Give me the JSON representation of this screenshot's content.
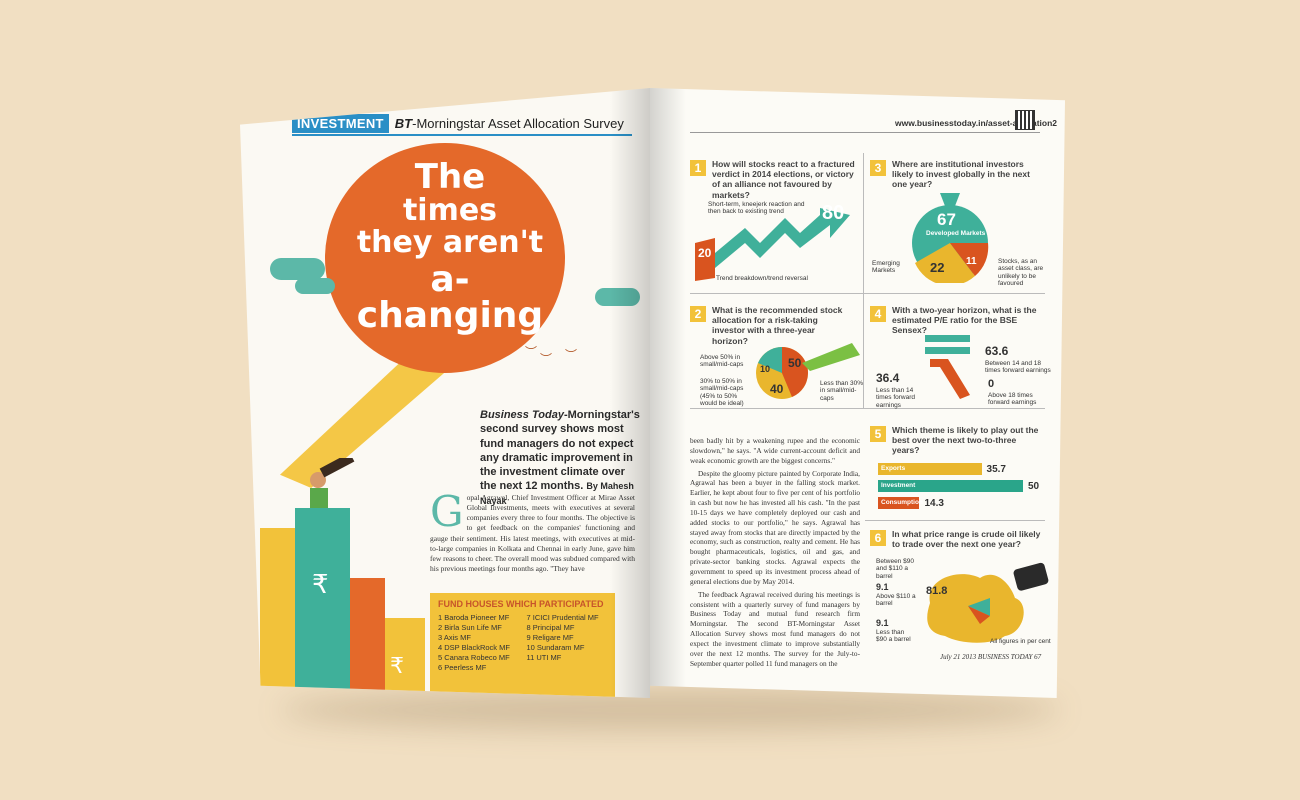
{
  "left_page": {
    "section_tag": "INVESTMENT",
    "survey_title_prefix": "BT",
    "survey_title": "-Morningstar Asset Allocation Survey",
    "headline": {
      "line1": "The",
      "line2": "times",
      "line3": "they aren't",
      "line4": "a-changing"
    },
    "deck": {
      "italic": "Business Today",
      "text": "-Morningstar's second survey shows most fund managers do not expect any dramatic improvement in the investment climate over the next 12 months.",
      "byline": "By Mahesh Nayak"
    },
    "dropcap": "G",
    "body": "opal Agrawal, Chief Investment Officer at Mirae Asset Global Investments, meets with executives at several companies every three to four months. The objective is to get feedback on the companies' functioning and gauge their sentiment. His latest meetings, with executives at mid-to-large companies in Kolkata and Chennai in early June, gave him few reasons to cheer. The overall mood was subdued compared with his previous meetings four months ago. \"They have",
    "funds": {
      "title": "FUND HOUSES WHICH PARTICIPATED",
      "items": [
        "1 Baroda Pioneer MF",
        "7 ICICI Prudential MF",
        "2 Birla Sun Life MF",
        "8 Principal MF",
        "3 Axis MF",
        "9 Religare MF",
        "4 DSP BlackRock MF",
        "10 Sundaram MF",
        "5 Canara Robeco MF",
        "11 UTI MF",
        "6 Peerless MF",
        ""
      ]
    }
  },
  "right_page": {
    "url": "www.businesstoday.in/asset-allocation2",
    "q1": {
      "num": "1",
      "text": "How will stocks react to a fractured verdict in 2014 elections, or victory of an alliance not favoured by markets?",
      "label_a": "Short-term, kneejerk reaction and then back to existing trend",
      "value_a": "80",
      "label_b": "Trend breakdown/trend reversal",
      "value_b": "20"
    },
    "q2": {
      "num": "2",
      "text": "What is the recommended stock allocation for a risk-taking investor with a three-year horizon?",
      "label_above": "Above 50% in small/mid-caps",
      "label_30": "30% to 50% in small/mid-caps (45% to 50% would be ideal)",
      "label_less": "Less than 30% in small/mid-caps",
      "v10": "10",
      "v50": "50",
      "v40": "40"
    },
    "q3": {
      "num": "3",
      "text": "Where are institutional investors likely to invest globally in the next one year?",
      "v67": "67",
      "developed": "Developed Markets",
      "v22": "22",
      "v11": "11",
      "emerging": "Emerging Markets",
      "stocks": "Stocks, as an asset class, are unlikely to be favoured"
    },
    "q4": {
      "num": "4",
      "text": "With a two-year horizon, what is the estimated P/E ratio for the BSE Sensex?",
      "v636": "63.6",
      "l636": "Between 14 and 18 times forward earnings",
      "v364": "36.4",
      "l364": "Less than 14 times forward earnings",
      "v0": "0",
      "l0": "Above 18 times forward earnings"
    },
    "q5": {
      "num": "5",
      "text": "Which theme is likely to play out the best over the next two-to-three years?"
    },
    "q6": {
      "num": "6",
      "text": "In what price range is crude oil likely to trade over the next one year?",
      "l818": "Between $90 and $110 a barrel",
      "v818": "81.8",
      "v91a": "9.1",
      "l91a": "Above $110 a barrel",
      "v91b": "9.1",
      "l91b": "Less than $90 a barrel",
      "note": "All figures in per cent"
    },
    "body": [
      "been badly hit by a weakening rupee and the economic slowdown,\" he says. \"A wide current-account deficit and weak economic growth are the biggest concerns.\"",
      "Despite the gloomy picture painted by Corporate India, Agrawal has been a buyer in the falling stock market. Earlier, he kept about four to five per cent of his portfolio in cash but now he has invested all his cash. \"In the past 10-15 days we have completely deployed our cash and added stocks to our portfolio,\" he says. Agrawal has stayed away from stocks that are directly impacted by the economy, such as construction, realty and cement. He has bought pharmaceuticals, logistics, oil and gas, and private-sector banking stocks. Agrawal expects the government to speed up its investment process ahead of general elections due by May 2014.",
      "The feedback Agrawal received during his meetings is consistent with a quarterly survey of fund managers by Business Today and mutual fund research firm Morningstar. The second BT-Morningstar Asset Allocation Survey shows most fund managers do not expect the investment climate to improve substantially over the next 12 months. The survey for the July-to-September quarter polled 11 fund managers on the"
    ],
    "footer": "July 21  2013  BUSINESS TODAY  67"
  },
  "chart_data": {
    "type": "bar",
    "categories": [
      "Exports",
      "Investment",
      "Consumption"
    ],
    "values": [
      35.7,
      50,
      14.3
    ],
    "xlim": [
      0,
      50
    ],
    "colors": [
      "#e9b62d",
      "#2aa58a",
      "#d9541f"
    ]
  }
}
